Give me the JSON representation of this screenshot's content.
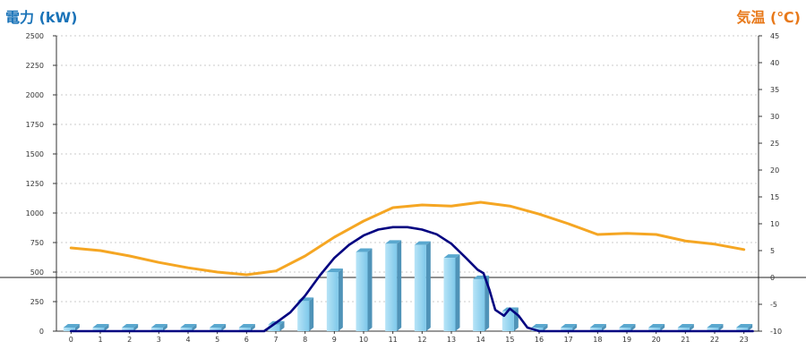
{
  "chart_data": {
    "type": "bar",
    "title": "",
    "xlabel": "",
    "ylabel": "電力 (kW)",
    "ylabel_right": "気温 (℃)",
    "categories": [
      "0",
      "1",
      "2",
      "3",
      "4",
      "5",
      "6",
      "7",
      "8",
      "9",
      "10",
      "11",
      "12",
      "13",
      "14",
      "15",
      "16",
      "17",
      "18",
      "19",
      "20",
      "21",
      "22",
      "23"
    ],
    "ylim": [
      0,
      2500
    ],
    "yticks": [
      0,
      250,
      500,
      750,
      1000,
      1250,
      1500,
      1750,
      2000,
      2250,
      2500
    ],
    "ylim_right": [
      -10,
      45
    ],
    "yticks_right": [
      -10,
      -5,
      0,
      5,
      10,
      15,
      20,
      25,
      30,
      35,
      40,
      45
    ],
    "reference_line_right": 0,
    "grid": true,
    "legend": "none",
    "series": [
      {
        "type": "bar",
        "axis": "left",
        "color": "#87ceeb",
        "values": [
          0,
          0,
          0,
          0,
          0,
          0,
          0,
          55,
          255,
          500,
          670,
          740,
          730,
          620,
          440,
          170,
          0,
          0,
          0,
          0,
          0,
          0,
          0,
          0
        ]
      },
      {
        "type": "line",
        "axis": "left",
        "color": "#000080",
        "x": [
          0,
          6.6,
          7,
          7.5,
          8,
          8.5,
          9,
          9.5,
          10,
          10.5,
          11,
          11.5,
          12,
          12.5,
          13,
          13.5,
          13.9,
          14.1,
          14.3,
          14.5,
          14.8,
          15,
          15.3,
          15.6,
          16,
          23.3
        ],
        "values": [
          0,
          0,
          70,
          160,
          300,
          470,
          620,
          730,
          810,
          860,
          880,
          880,
          860,
          820,
          740,
          620,
          520,
          490,
          350,
          180,
          130,
          190,
          130,
          30,
          0,
          0
        ]
      },
      {
        "type": "line",
        "axis": "right",
        "color": "#f5a623",
        "x": [
          0,
          1,
          2,
          3,
          4,
          5,
          6,
          7,
          8,
          9,
          10,
          11,
          12,
          13,
          14,
          15,
          16,
          17,
          18,
          19,
          20,
          21,
          22,
          23
        ],
        "values": [
          5.5,
          5.0,
          4.0,
          2.8,
          1.8,
          1.0,
          0.5,
          1.2,
          4.0,
          7.5,
          10.5,
          13.0,
          13.5,
          13.3,
          14.0,
          13.3,
          11.8,
          10.0,
          8.0,
          8.2,
          8.0,
          6.8,
          6.2,
          5.2
        ]
      }
    ]
  }
}
